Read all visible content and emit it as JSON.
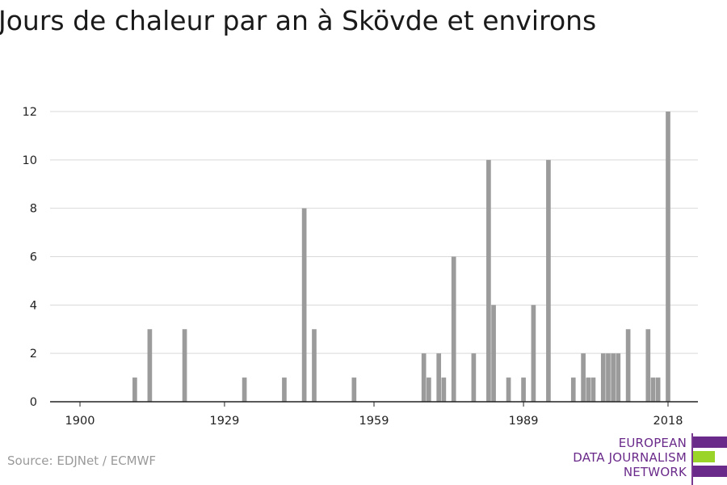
{
  "page": {
    "title": "Jours de chaleur par an à Skövde et environs",
    "source": "Source: EDJNet / ECMWF"
  },
  "logo": {
    "lines": [
      "EUROPEAN",
      "DATA JOURNALISM",
      "NETWORK"
    ],
    "text_color": "#6a2a8a",
    "bar_colors": [
      "#6a2a8a",
      "#9ad428",
      "#6a2a8a"
    ]
  },
  "colors": {
    "bar": "#9b9b9b",
    "grid": "#d9d9d9",
    "axis": "#222222"
  },
  "chart_data": {
    "type": "bar",
    "title": "Jours de chaleur par an à Skövde et environs",
    "xlabel": "",
    "ylabel": "",
    "x_range": [
      1894,
      2024
    ],
    "ylim": [
      0,
      12
    ],
    "y_ticks": [
      0,
      2,
      4,
      6,
      8,
      10,
      12
    ],
    "x_ticks": [
      1900,
      1929,
      1959,
      1989,
      2018
    ],
    "grid": true,
    "legend": "none",
    "series": [
      {
        "x": [
          1911,
          1914,
          1921,
          1933,
          1941,
          1945,
          1947,
          1955,
          1969,
          1970,
          1972,
          1973,
          1975,
          1979,
          1982,
          1983,
          1986,
          1989,
          1991,
          1994,
          1999,
          2001,
          2002,
          2003,
          2005,
          2006,
          2007,
          2008,
          2010,
          2014,
          2015,
          2016,
          2018
        ],
        "values": [
          1,
          3,
          3,
          1,
          1,
          8,
          3,
          1,
          2,
          1,
          2,
          1,
          6,
          2,
          10,
          4,
          1,
          1,
          4,
          10,
          1,
          2,
          1,
          1,
          2,
          2,
          2,
          2,
          3,
          3,
          1,
          1,
          12
        ]
      }
    ]
  }
}
